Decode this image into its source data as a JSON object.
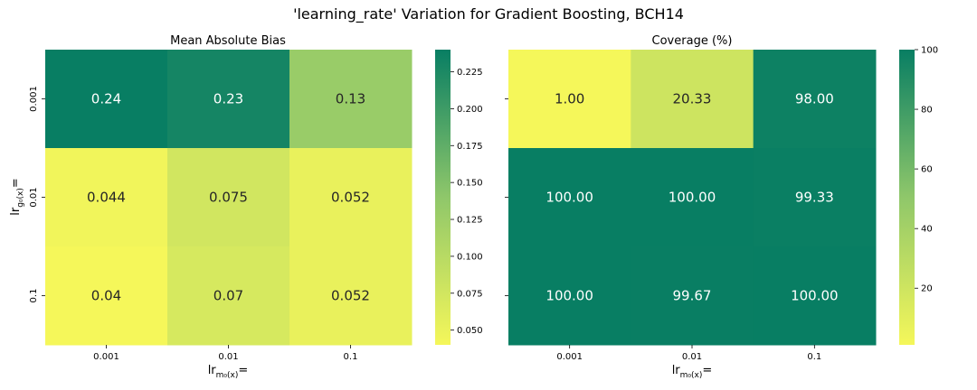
{
  "figure": {
    "title": "'learning_rate' Variation for Gradient Boosting, BCH14",
    "ylabel_main": "lr",
    "ylabel_sub": "g₀(x)",
    "ylabel_suffix": "=",
    "xlabel_main": "lr",
    "xlabel_sub": "m₀(x)",
    "xlabel_suffix": "="
  },
  "colors": {
    "cmap_low": "#f5f75a",
    "cmap_mid": "#8fc76a",
    "cmap_high": "#087e63"
  },
  "chart_data": [
    {
      "type": "heatmap",
      "title": "Mean Absolute Bias",
      "x_categories": [
        "0.001",
        "0.01",
        "0.1"
      ],
      "y_categories": [
        "0.001",
        "0.01",
        "0.1"
      ],
      "values": [
        [
          0.24,
          0.23,
          0.13
        ],
        [
          0.044,
          0.075,
          0.052
        ],
        [
          0.04,
          0.07,
          0.052
        ]
      ],
      "annotations": [
        [
          "0.24",
          "0.23",
          "0.13"
        ],
        [
          "0.044",
          "0.075",
          "0.052"
        ],
        [
          "0.04",
          "0.07",
          "0.052"
        ]
      ],
      "colorbar_range": [
        0.04,
        0.24
      ],
      "colorbar_ticks": [
        "0.050",
        "0.075",
        "0.100",
        "0.125",
        "0.150",
        "0.175",
        "0.200",
        "0.225"
      ],
      "colormap": "summer_r"
    },
    {
      "type": "heatmap",
      "title": "Coverage (%)",
      "x_categories": [
        "0.001",
        "0.01",
        "0.1"
      ],
      "y_categories": [
        "0.001",
        "0.01",
        "0.1"
      ],
      "values": [
        [
          1.0,
          20.33,
          98.0
        ],
        [
          100.0,
          100.0,
          99.33
        ],
        [
          100.0,
          99.67,
          100.0
        ]
      ],
      "annotations": [
        [
          "1.00",
          "20.33",
          "98.00"
        ],
        [
          "100.00",
          "100.00",
          "99.33"
        ],
        [
          "100.00",
          "99.67",
          "100.00"
        ]
      ],
      "colorbar_range": [
        1,
        100
      ],
      "colorbar_ticks": [
        "20",
        "40",
        "60",
        "80",
        "100"
      ],
      "colormap": "summer_r"
    }
  ]
}
